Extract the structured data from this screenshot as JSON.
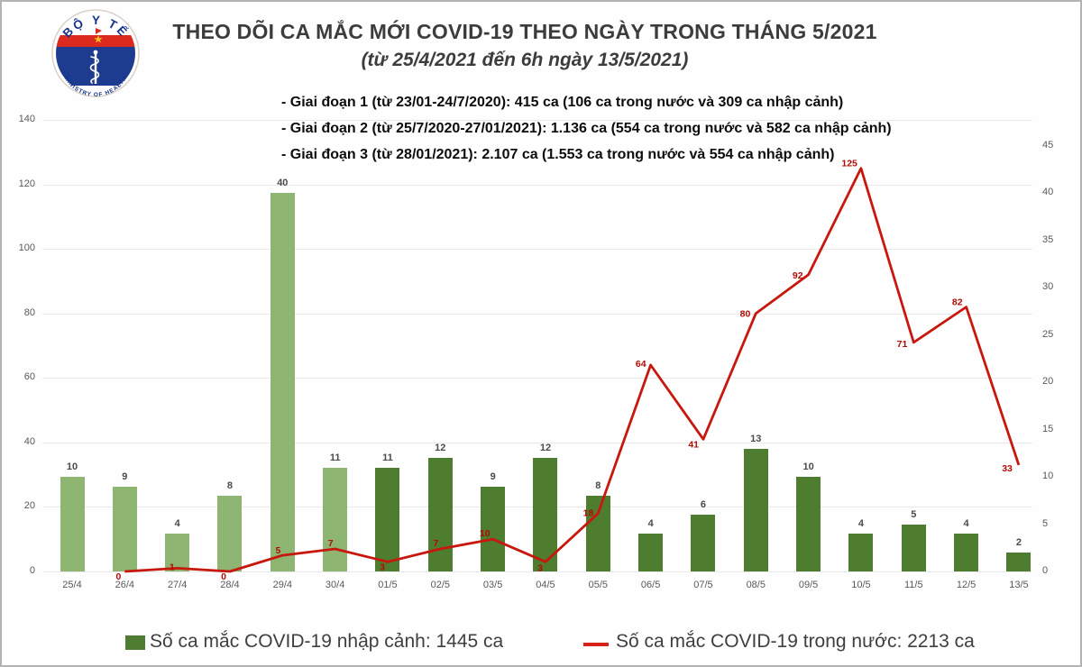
{
  "header": {
    "title_line1": "THEO DÕI CA MẮC MỚI COVID-19 THEO NGÀY TRONG THÁNG 5/2021",
    "title_line2": "(từ 25/4/2021 đến 6h ngày 13/5/2021)",
    "notes": [
      "- Giai đoạn 1 (từ 23/01-24/7/2020): 415 ca (106 ca trong nước và 309 ca nhập cảnh)",
      "- Giai đoạn 2 (từ 25/7/2020-27/01/2021): 1.136 ca (554 ca trong nước và 582 ca nhập cảnh)",
      "- Giai đoạn 3 (từ 28/01/2021): 2.107 ca (1.553 ca trong nước và 554 ca nhập cảnh)"
    ]
  },
  "logo": {
    "top_text": "BỘ Y TẾ",
    "bottom_text": "MINISTRY OF HEALTH"
  },
  "chart_data": {
    "type": "bar+line",
    "categories": [
      "25/4",
      "26/4",
      "27/4",
      "28/4",
      "29/4",
      "30/4",
      "01/5",
      "02/5",
      "03/5",
      "04/5",
      "05/5",
      "06/5",
      "07/5",
      "08/5",
      "09/5",
      "10/5",
      "11/5",
      "12/5",
      "13/5"
    ],
    "series": [
      {
        "name": "Số ca mắc COVID-19 nhập cảnh",
        "type": "bar",
        "axis": "right",
        "values": [
          10,
          9,
          4,
          8,
          40,
          11,
          11,
          12,
          9,
          12,
          8,
          4,
          6,
          13,
          10,
          4,
          5,
          4,
          2
        ]
      },
      {
        "name": "Số ca mắc COVID-19 trong nước",
        "type": "line",
        "axis": "left",
        "values": [
          null,
          0,
          1,
          0,
          5,
          7,
          3,
          7,
          10,
          3,
          18,
          64,
          41,
          80,
          92,
          125,
          71,
          82,
          33
        ]
      }
    ],
    "left_axis": {
      "min": 0,
      "max": 140,
      "step": 20
    },
    "right_axis": {
      "min": 0,
      "max": 45,
      "step": 5
    },
    "grid": "horizontal",
    "legend_position": "bottom",
    "colors": {
      "bar_light": "#8fb572",
      "bar_dark": "#4e7d2f",
      "line": "#c8170d",
      "line_label": "#b00c02",
      "bar_label": "#4a4a4a",
      "axis_text": "#595959"
    }
  },
  "legend": [
    {
      "label": "Số ca mắc COVID-19 nhập cảnh: 1445 ca",
      "swatch": "green-square",
      "color": "#4e7d32"
    },
    {
      "label": "Số ca mắc COVID-19 trong nước: 2213 ca",
      "swatch": "red-line",
      "color": "#d92018"
    }
  ]
}
